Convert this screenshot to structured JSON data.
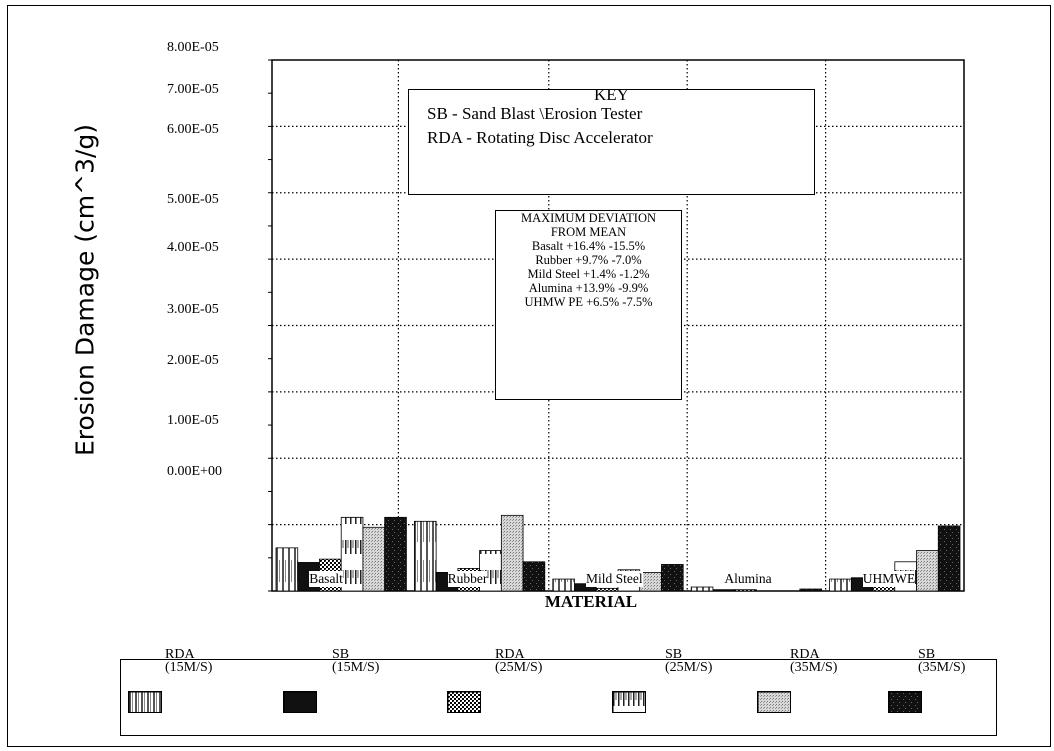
{
  "chart_data": {
    "type": "bar",
    "title": "",
    "ylabel": "Erosion Damage (cm^3/g)",
    "xlabel": "MATERIAL",
    "y_tick_labels": [
      "8.00E-05",
      "7.00E-05",
      "6.00E-05",
      "5.00E-05",
      "4.00E-05",
      "3.00E-05",
      "2.00E-05",
      "1.00E-05",
      "0.00E+00"
    ],
    "ylim": [
      0,
      8e-05
    ],
    "categories": [
      "Basalt",
      "Rubber",
      "Mild Steel",
      "Alumina",
      "UHMWE"
    ],
    "category_labels_visible": [
      "Basalt",
      "Rubber",
      "Mild Steel",
      "Alumina",
      "UHMWE"
    ],
    "series": [
      {
        "name": "RDA (15M/S)",
        "values": [
          6.5e-06,
          1.05e-05,
          1.8e-06,
          6e-07,
          1.8e-06
        ]
      },
      {
        "name": "SB (15M/S)",
        "values": [
          4.3e-06,
          2.8e-06,
          1.1e-06,
          2e-07,
          2e-06
        ]
      },
      {
        "name": "RDA (25M/S)",
        "values": [
          4.8e-06,
          3.4e-06,
          4e-07,
          2e-07,
          2e-06
        ]
      },
      {
        "name": "SB (25M/S)",
        "values": [
          1.11e-05,
          6.1e-06,
          3.2e-06,
          0,
          4.4e-06
        ]
      },
      {
        "name": "RDA (35M/S)",
        "values": [
          9.6e-06,
          1.14e-05,
          2.8e-06,
          0,
          6.1e-06
        ]
      },
      {
        "name": "SB (35M/S)",
        "values": [
          1.11e-05,
          4.4e-06,
          4e-06,
          3e-07,
          9.8e-06
        ]
      }
    ],
    "grid": true,
    "legend_position": "bottom"
  },
  "key": {
    "title": "KEY",
    "line1": "SB - Sand Blast \\Erosion Tester",
    "line2": "RDA - Rotating Disc Accelerator"
  },
  "deviation": {
    "title1": "MAXIMUM DEVIATION",
    "title2": "FROM MEAN",
    "rows": [
      "Basalt +16.4% -15.5%",
      "Rubber +9.7% -7.0%",
      "Mild Steel +1.4% -1.2%",
      "Alumina +13.9% -9.9%",
      "UHMW PE +6.5% -7.5%"
    ]
  },
  "legend": [
    {
      "line1": "RDA",
      "line2": "(15M/S)",
      "pattern": "rda15"
    },
    {
      "line1": "SB",
      "line2": "(15M/S)",
      "pattern": "sb15"
    },
    {
      "line1": "RDA",
      "line2": "(25M/S)",
      "pattern": "rda25"
    },
    {
      "line1": "SB",
      "line2": "(25M/S)",
      "pattern": "sb25"
    },
    {
      "line1": "RDA",
      "line2": "(35M/S)",
      "pattern": "rda35"
    },
    {
      "line1": "SB",
      "line2": "(35M/S)",
      "pattern": "sb35"
    }
  ]
}
